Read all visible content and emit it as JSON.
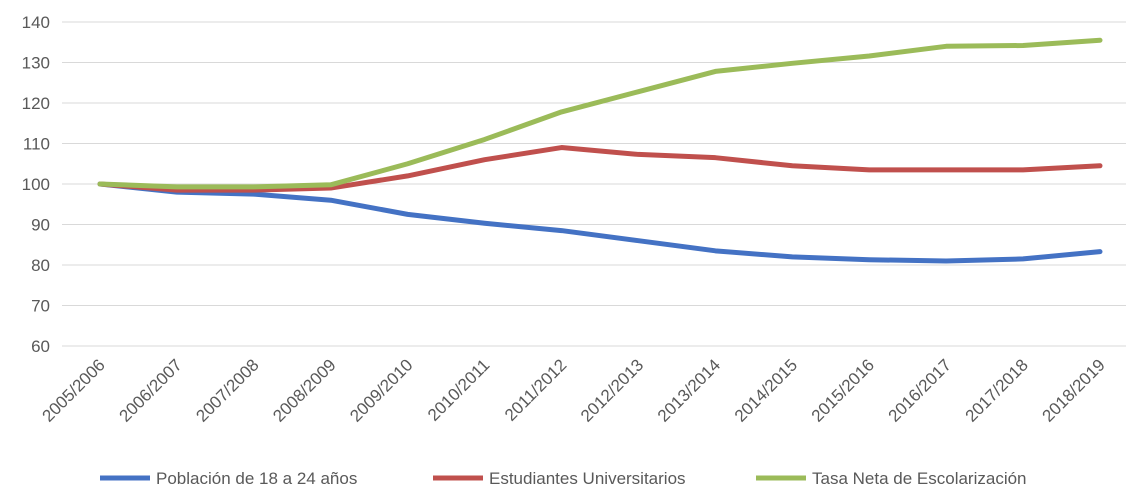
{
  "chart_data": {
    "type": "line",
    "title": "",
    "xlabel": "",
    "ylabel": "",
    "categories": [
      "2005/2006",
      "2006/2007",
      "2007/2008",
      "2008/2009",
      "2009/2010",
      "2010/2011",
      "2011/2012",
      "2012/2013",
      "2013/2014",
      "2014/2015",
      "2015/2016",
      "2016/2017",
      "2017/2018",
      "2018/2019"
    ],
    "ylim": [
      60,
      140
    ],
    "yticks": [
      60,
      70,
      80,
      90,
      100,
      110,
      120,
      130,
      140
    ],
    "grid": true,
    "legend_position": "bottom",
    "series": [
      {
        "name": "Población de 18 a 24 años",
        "color": "#4472c4",
        "values": [
          100,
          98,
          97.5,
          96,
          92.5,
          90.3,
          88.5,
          86,
          83.5,
          82,
          81.3,
          81,
          81.5,
          83.3
        ]
      },
      {
        "name": "Estudiantes Universitarios",
        "color": "#c0504d",
        "values": [
          100,
          98.5,
          98.5,
          99,
          102,
          106,
          109,
          107.3,
          106.5,
          104.5,
          103.5,
          103.5,
          103.5,
          104.5
        ]
      },
      {
        "name": "Tasa Neta de Escolarización",
        "color": "#9bbb59",
        "values": [
          100,
          99.3,
          99.3,
          99.8,
          105,
          111,
          117.8,
          122.8,
          127.8,
          129.8,
          131.6,
          134,
          134.2,
          135.5
        ]
      }
    ]
  }
}
